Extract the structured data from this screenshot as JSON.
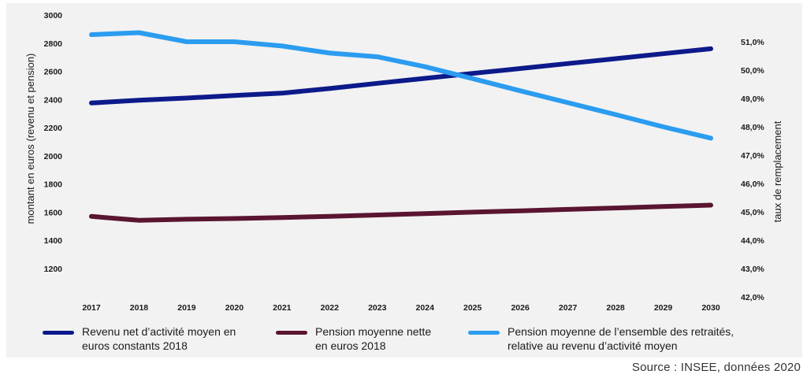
{
  "chart_data": {
    "type": "line",
    "categories": [
      "2017",
      "2018",
      "2019",
      "2020",
      "2021",
      "2022",
      "2023",
      "2024",
      "2025",
      "2026",
      "2027",
      "2028",
      "2029",
      "2030"
    ],
    "y_left": {
      "label": "montant en euros (revenu et pension)",
      "range": [
        1200,
        3000
      ],
      "ticks": [
        "1200",
        "1400",
        "1600",
        "1800",
        "2000",
        "2200",
        "2400",
        "2600",
        "2800",
        "3000"
      ]
    },
    "y_right": {
      "label": "taux de remplacement",
      "range": [
        42.0,
        51.0
      ],
      "ticks": [
        "42,0%",
        "43,0%",
        "44,0%",
        "45,0%",
        "46,0%",
        "47,0%",
        "48,0%",
        "49,0%",
        "50,0%",
        "51,0%"
      ]
    },
    "series": [
      {
        "name_lines": [
          "Revenu net d’activité moyen en",
          "euros constants 2018"
        ],
        "axis": "left",
        "color": "#0d1a8a",
        "values": [
          2375,
          2395,
          2410,
          2428,
          2445,
          2478,
          2515,
          2550,
          2585,
          2620,
          2655,
          2690,
          2725,
          2760
        ]
      },
      {
        "name_lines": [
          "Pension moyenne nette",
          "en euros 2018"
        ],
        "axis": "left",
        "color": "#5a1530",
        "values": [
          1570,
          1542,
          1550,
          1555,
          1562,
          1570,
          1580,
          1590,
          1600,
          1610,
          1620,
          1630,
          1640,
          1650
        ]
      },
      {
        "name_lines": [
          "Pension moyenne de l’ensemble des retraités,",
          "relative au revenu d’activité moyen"
        ],
        "axis": "right",
        "color": "#2b9cf0",
        "values": [
          51.25,
          51.32,
          51.0,
          51.0,
          50.85,
          50.6,
          50.47,
          50.12,
          49.7,
          49.27,
          48.85,
          48.43,
          48.0,
          47.6
        ]
      }
    ]
  },
  "source": "Source : INSEE, données 2020"
}
